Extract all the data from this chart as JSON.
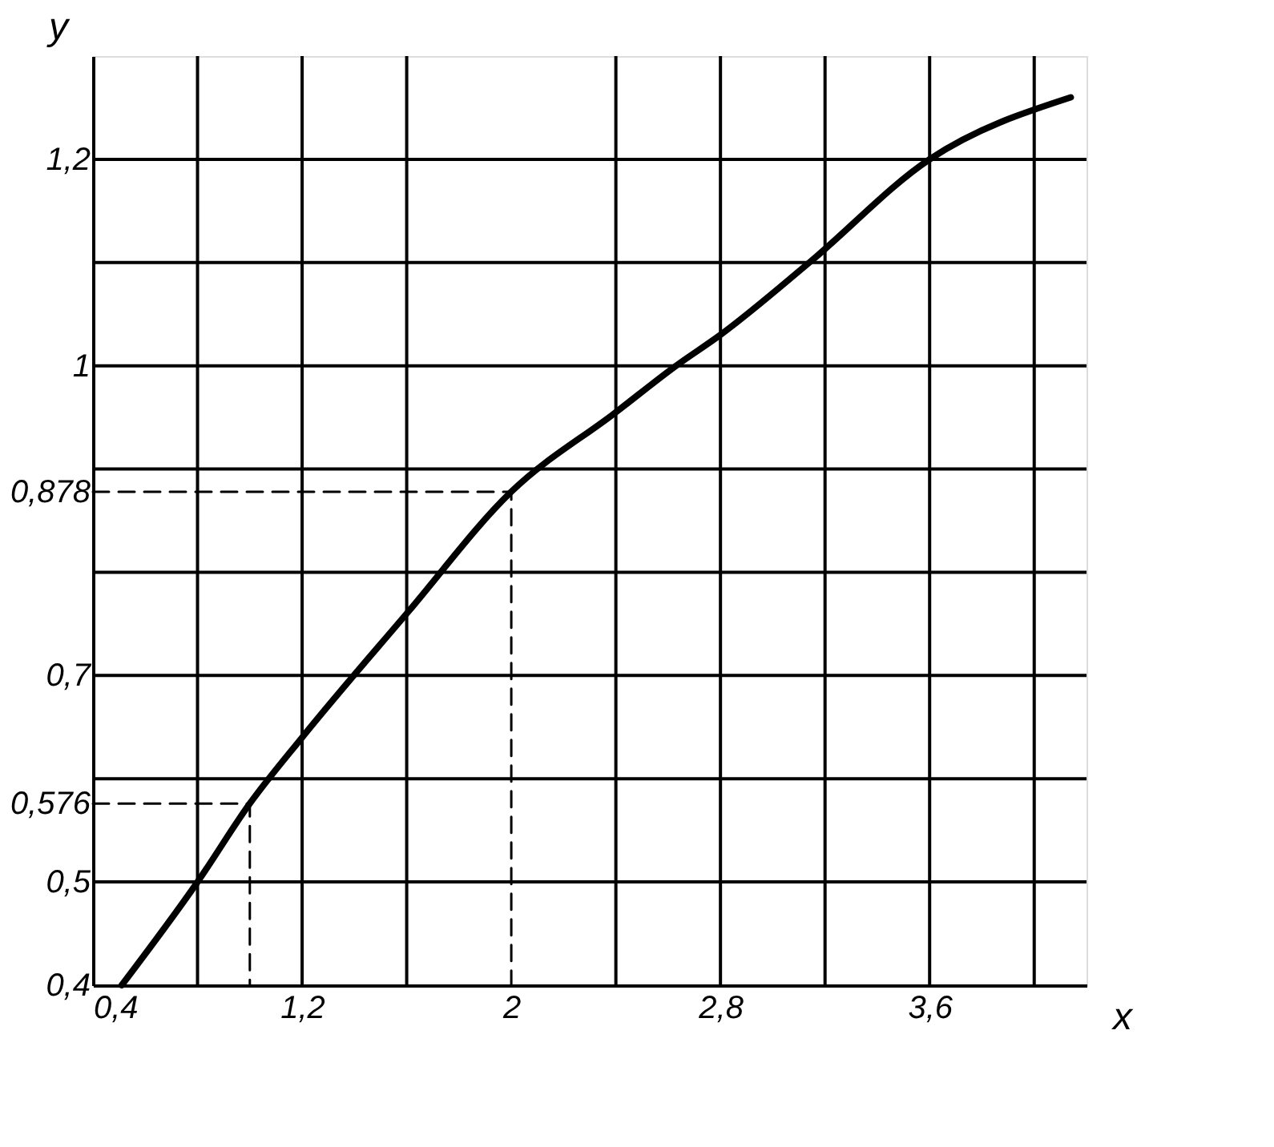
{
  "chart_data": {
    "type": "line",
    "xlabel": "x",
    "ylabel": "y",
    "xlim": [
      0.4,
      4.2
    ],
    "ylim": [
      0.4,
      1.3
    ],
    "xticks": [
      {
        "value": 0.4,
        "label": "0,4"
      },
      {
        "value": 0.8,
        "label": null
      },
      {
        "value": 1.2,
        "label": "1,2"
      },
      {
        "value": 1.6,
        "label": null
      },
      {
        "value": 2,
        "label": "2"
      },
      {
        "value": 2.4,
        "label": null
      },
      {
        "value": 2.8,
        "label": "2,8"
      },
      {
        "value": 3.2,
        "label": null
      },
      {
        "value": 3.6,
        "label": "3,6"
      },
      {
        "value": 4.0,
        "label": null
      }
    ],
    "yticks": [
      {
        "value": 0.4,
        "label": "0,4"
      },
      {
        "value": 0.5,
        "label": "0,5"
      },
      {
        "value": 0.576,
        "label": "0,576"
      },
      {
        "value": 0.6,
        "label": null
      },
      {
        "value": 0.7,
        "label": "0,7"
      },
      {
        "value": 0.8,
        "label": null
      },
      {
        "value": 0.878,
        "label": "0,878"
      },
      {
        "value": 0.9,
        "label": null
      },
      {
        "value": 1,
        "label": "1"
      },
      {
        "value": 1.1,
        "label": null
      },
      {
        "value": 1.2,
        "label": "1,2"
      }
    ],
    "grid": true,
    "series": [
      {
        "color": "#000000",
        "line_style": "solid",
        "x": [
          0.51,
          0.8,
          1.0,
          1.2,
          1.6,
          2.0,
          2.4,
          2.63,
          2.8,
          3.14,
          3.6,
          4.14
        ],
        "values": [
          0.4,
          0.5,
          0.576,
          0.64,
          0.76,
          0.878,
          0.955,
          1.0,
          1.03,
          1.1,
          1.2,
          1.26
        ]
      },
      {
        "color": "#000000",
        "line_style": "dashed",
        "x": [
          0.4,
          1.0,
          1.0
        ],
        "values": [
          0.576,
          0.576,
          0.4
        ]
      },
      {
        "color": "#000000",
        "line_style": "dashed",
        "x": [
          0.4,
          2.0,
          2.0
        ],
        "values": [
          0.878,
          0.878,
          0.4
        ]
      }
    ]
  }
}
